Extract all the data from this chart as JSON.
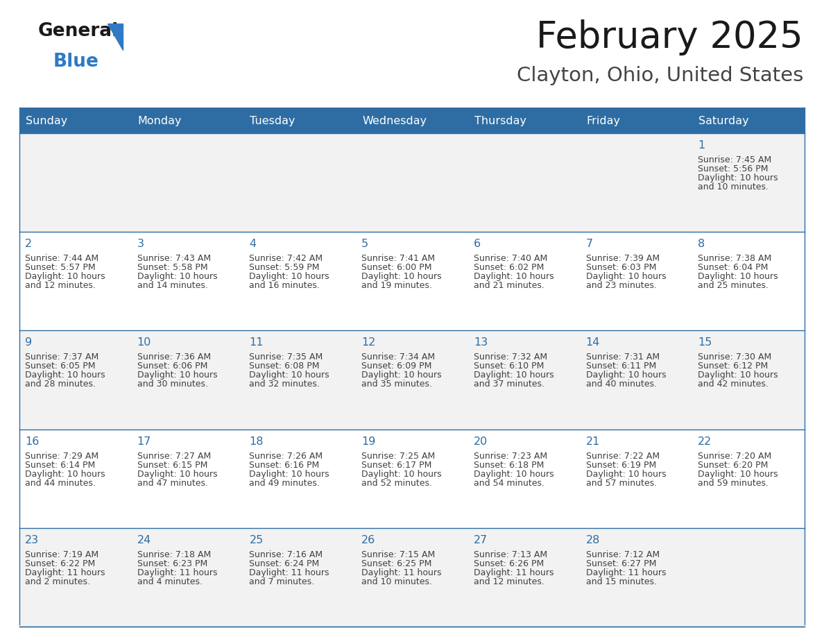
{
  "title": "February 2025",
  "subtitle": "Clayton, Ohio, United States",
  "days_of_week": [
    "Sunday",
    "Monday",
    "Tuesday",
    "Wednesday",
    "Thursday",
    "Friday",
    "Saturday"
  ],
  "header_bg_color": "#2E6DA4",
  "header_text_color": "#FFFFFF",
  "cell_bg_even": "#F2F2F2",
  "cell_bg_odd": "#FFFFFF",
  "border_color": "#2E6DA4",
  "day_number_color": "#2E6DA4",
  "cell_text_color": "#404040",
  "logo_general_color": "#1A1A1A",
  "logo_blue_color": "#2E7AC4",
  "calendar_data": [
    {
      "day": 1,
      "row": 0,
      "col": 6,
      "sunrise": "7:45 AM",
      "sunset": "5:56 PM",
      "daylight_line1": "Daylight: 10 hours",
      "daylight_line2": "and 10 minutes."
    },
    {
      "day": 2,
      "row": 1,
      "col": 0,
      "sunrise": "7:44 AM",
      "sunset": "5:57 PM",
      "daylight_line1": "Daylight: 10 hours",
      "daylight_line2": "and 12 minutes."
    },
    {
      "day": 3,
      "row": 1,
      "col": 1,
      "sunrise": "7:43 AM",
      "sunset": "5:58 PM",
      "daylight_line1": "Daylight: 10 hours",
      "daylight_line2": "and 14 minutes."
    },
    {
      "day": 4,
      "row": 1,
      "col": 2,
      "sunrise": "7:42 AM",
      "sunset": "5:59 PM",
      "daylight_line1": "Daylight: 10 hours",
      "daylight_line2": "and 16 minutes."
    },
    {
      "day": 5,
      "row": 1,
      "col": 3,
      "sunrise": "7:41 AM",
      "sunset": "6:00 PM",
      "daylight_line1": "Daylight: 10 hours",
      "daylight_line2": "and 19 minutes."
    },
    {
      "day": 6,
      "row": 1,
      "col": 4,
      "sunrise": "7:40 AM",
      "sunset": "6:02 PM",
      "daylight_line1": "Daylight: 10 hours",
      "daylight_line2": "and 21 minutes."
    },
    {
      "day": 7,
      "row": 1,
      "col": 5,
      "sunrise": "7:39 AM",
      "sunset": "6:03 PM",
      "daylight_line1": "Daylight: 10 hours",
      "daylight_line2": "and 23 minutes."
    },
    {
      "day": 8,
      "row": 1,
      "col": 6,
      "sunrise": "7:38 AM",
      "sunset": "6:04 PM",
      "daylight_line1": "Daylight: 10 hours",
      "daylight_line2": "and 25 minutes."
    },
    {
      "day": 9,
      "row": 2,
      "col": 0,
      "sunrise": "7:37 AM",
      "sunset": "6:05 PM",
      "daylight_line1": "Daylight: 10 hours",
      "daylight_line2": "and 28 minutes."
    },
    {
      "day": 10,
      "row": 2,
      "col": 1,
      "sunrise": "7:36 AM",
      "sunset": "6:06 PM",
      "daylight_line1": "Daylight: 10 hours",
      "daylight_line2": "and 30 minutes."
    },
    {
      "day": 11,
      "row": 2,
      "col": 2,
      "sunrise": "7:35 AM",
      "sunset": "6:08 PM",
      "daylight_line1": "Daylight: 10 hours",
      "daylight_line2": "and 32 minutes."
    },
    {
      "day": 12,
      "row": 2,
      "col": 3,
      "sunrise": "7:34 AM",
      "sunset": "6:09 PM",
      "daylight_line1": "Daylight: 10 hours",
      "daylight_line2": "and 35 minutes."
    },
    {
      "day": 13,
      "row": 2,
      "col": 4,
      "sunrise": "7:32 AM",
      "sunset": "6:10 PM",
      "daylight_line1": "Daylight: 10 hours",
      "daylight_line2": "and 37 minutes."
    },
    {
      "day": 14,
      "row": 2,
      "col": 5,
      "sunrise": "7:31 AM",
      "sunset": "6:11 PM",
      "daylight_line1": "Daylight: 10 hours",
      "daylight_line2": "and 40 minutes."
    },
    {
      "day": 15,
      "row": 2,
      "col": 6,
      "sunrise": "7:30 AM",
      "sunset": "6:12 PM",
      "daylight_line1": "Daylight: 10 hours",
      "daylight_line2": "and 42 minutes."
    },
    {
      "day": 16,
      "row": 3,
      "col": 0,
      "sunrise": "7:29 AM",
      "sunset": "6:14 PM",
      "daylight_line1": "Daylight: 10 hours",
      "daylight_line2": "and 44 minutes."
    },
    {
      "day": 17,
      "row": 3,
      "col": 1,
      "sunrise": "7:27 AM",
      "sunset": "6:15 PM",
      "daylight_line1": "Daylight: 10 hours",
      "daylight_line2": "and 47 minutes."
    },
    {
      "day": 18,
      "row": 3,
      "col": 2,
      "sunrise": "7:26 AM",
      "sunset": "6:16 PM",
      "daylight_line1": "Daylight: 10 hours",
      "daylight_line2": "and 49 minutes."
    },
    {
      "day": 19,
      "row": 3,
      "col": 3,
      "sunrise": "7:25 AM",
      "sunset": "6:17 PM",
      "daylight_line1": "Daylight: 10 hours",
      "daylight_line2": "and 52 minutes."
    },
    {
      "day": 20,
      "row": 3,
      "col": 4,
      "sunrise": "7:23 AM",
      "sunset": "6:18 PM",
      "daylight_line1": "Daylight: 10 hours",
      "daylight_line2": "and 54 minutes."
    },
    {
      "day": 21,
      "row": 3,
      "col": 5,
      "sunrise": "7:22 AM",
      "sunset": "6:19 PM",
      "daylight_line1": "Daylight: 10 hours",
      "daylight_line2": "and 57 minutes."
    },
    {
      "day": 22,
      "row": 3,
      "col": 6,
      "sunrise": "7:20 AM",
      "sunset": "6:20 PM",
      "daylight_line1": "Daylight: 10 hours",
      "daylight_line2": "and 59 minutes."
    },
    {
      "day": 23,
      "row": 4,
      "col": 0,
      "sunrise": "7:19 AM",
      "sunset": "6:22 PM",
      "daylight_line1": "Daylight: 11 hours",
      "daylight_line2": "and 2 minutes."
    },
    {
      "day": 24,
      "row": 4,
      "col": 1,
      "sunrise": "7:18 AM",
      "sunset": "6:23 PM",
      "daylight_line1": "Daylight: 11 hours",
      "daylight_line2": "and 4 minutes."
    },
    {
      "day": 25,
      "row": 4,
      "col": 2,
      "sunrise": "7:16 AM",
      "sunset": "6:24 PM",
      "daylight_line1": "Daylight: 11 hours",
      "daylight_line2": "and 7 minutes."
    },
    {
      "day": 26,
      "row": 4,
      "col": 3,
      "sunrise": "7:15 AM",
      "sunset": "6:25 PM",
      "daylight_line1": "Daylight: 11 hours",
      "daylight_line2": "and 10 minutes."
    },
    {
      "day": 27,
      "row": 4,
      "col": 4,
      "sunrise": "7:13 AM",
      "sunset": "6:26 PM",
      "daylight_line1": "Daylight: 11 hours",
      "daylight_line2": "and 12 minutes."
    },
    {
      "day": 28,
      "row": 4,
      "col": 5,
      "sunrise": "7:12 AM",
      "sunset": "6:27 PM",
      "daylight_line1": "Daylight: 11 hours",
      "daylight_line2": "and 15 minutes."
    }
  ]
}
